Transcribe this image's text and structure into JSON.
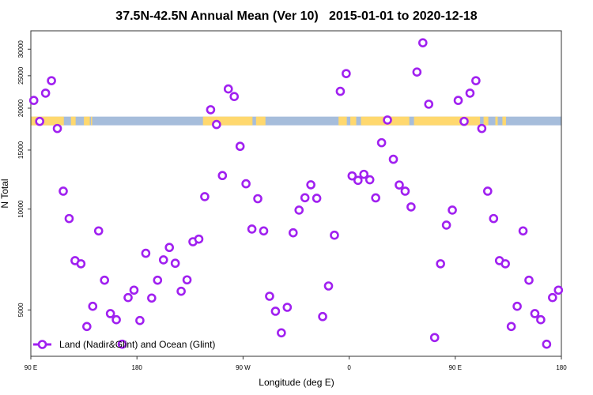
{
  "chart_data": {
    "type": "scatter",
    "title": "37.5N-42.5N Annual Mean (Ver 10)   2015-01-01 to 2020-12-18",
    "xlabel": "Longitude (deg E)",
    "ylabel": "N Total",
    "xlim": [
      90,
      540
    ],
    "ylim": [
      3636,
      34040
    ],
    "yscale": "log",
    "grid": false,
    "x_ticks": [
      {
        "value": 90,
        "label": "90 E"
      },
      {
        "value": 180,
        "label": "180"
      },
      {
        "value": 270,
        "label": "90 W"
      },
      {
        "value": 360,
        "label": "0"
      },
      {
        "value": 450,
        "label": "90 E"
      },
      {
        "value": 540,
        "label": "180"
      }
    ],
    "y_ticks": [
      {
        "value": 5000,
        "label": "5000"
      },
      {
        "value": 10000,
        "label": "10000"
      },
      {
        "value": 15000,
        "label": "15000"
      },
      {
        "value": 20000,
        "label": "20000"
      },
      {
        "value": 25000,
        "label": "25000"
      },
      {
        "value": 30000,
        "label": "30000"
      }
    ],
    "legend": {
      "position": "bottom-left",
      "entries": [
        "Land (Nadir&Glint) and Ocean (Glint)"
      ]
    },
    "series": [
      {
        "name": "Land (Nadir&Glint) and Ocean (Glint)",
        "color": "#A020F0",
        "x_start": 92.5,
        "x_step": 5,
        "values": [
          21100,
          18270,
          22180,
          24160,
          17400,
          11310,
          9370,
          7016,
          6866,
          4462,
          5127,
          8606,
          6134,
          4875,
          4675,
          3951,
          5443,
          5728,
          4650,
          7380,
          5425,
          6134,
          7053,
          7682,
          6891,
          5685,
          6148,
          7989,
          8136,
          10890,
          19790,
          17880,
          12590,
          22830,
          21670,
          15390,
          11900,
          8716,
          10740,
          8606,
          5493,
          4955,
          4272,
          5091,
          8496,
          9929,
          10810,
          11815,
          10770,
          4777,
          5895,
          8357,
          22460,
          25370,
          12560,
          12180,
          12700,
          12230,
          10800,
          15780,
          18440,
          14080,
          11800,
          11310,
          10150,
          25640,
          31350,
          20560,
          4136,
          6866,
          8957,
          9929,
          21100,
          18270,
          22180,
          24160,
          17400,
          11310,
          9370,
          7016,
          6866,
          4462,
          5127,
          8606,
          6134,
          4875,
          4675,
          3951,
          5443,
          5728
        ]
      }
    ],
    "land_band": {
      "value": 18270,
      "land_color": "#FFD86E",
      "ocean_color": "#A6BDDB",
      "land_lon_ranges": [
        [
          90,
          118
        ],
        [
          124,
          128
        ],
        [
          135,
          140
        ],
        [
          141,
          142
        ],
        [
          236,
          278
        ],
        [
          281,
          289
        ],
        [
          351,
          358
        ],
        [
          361,
          366
        ],
        [
          370,
          411
        ],
        [
          415,
          471
        ],
        [
          474,
          478
        ],
        [
          484,
          486
        ],
        [
          490,
          493
        ]
      ]
    }
  }
}
